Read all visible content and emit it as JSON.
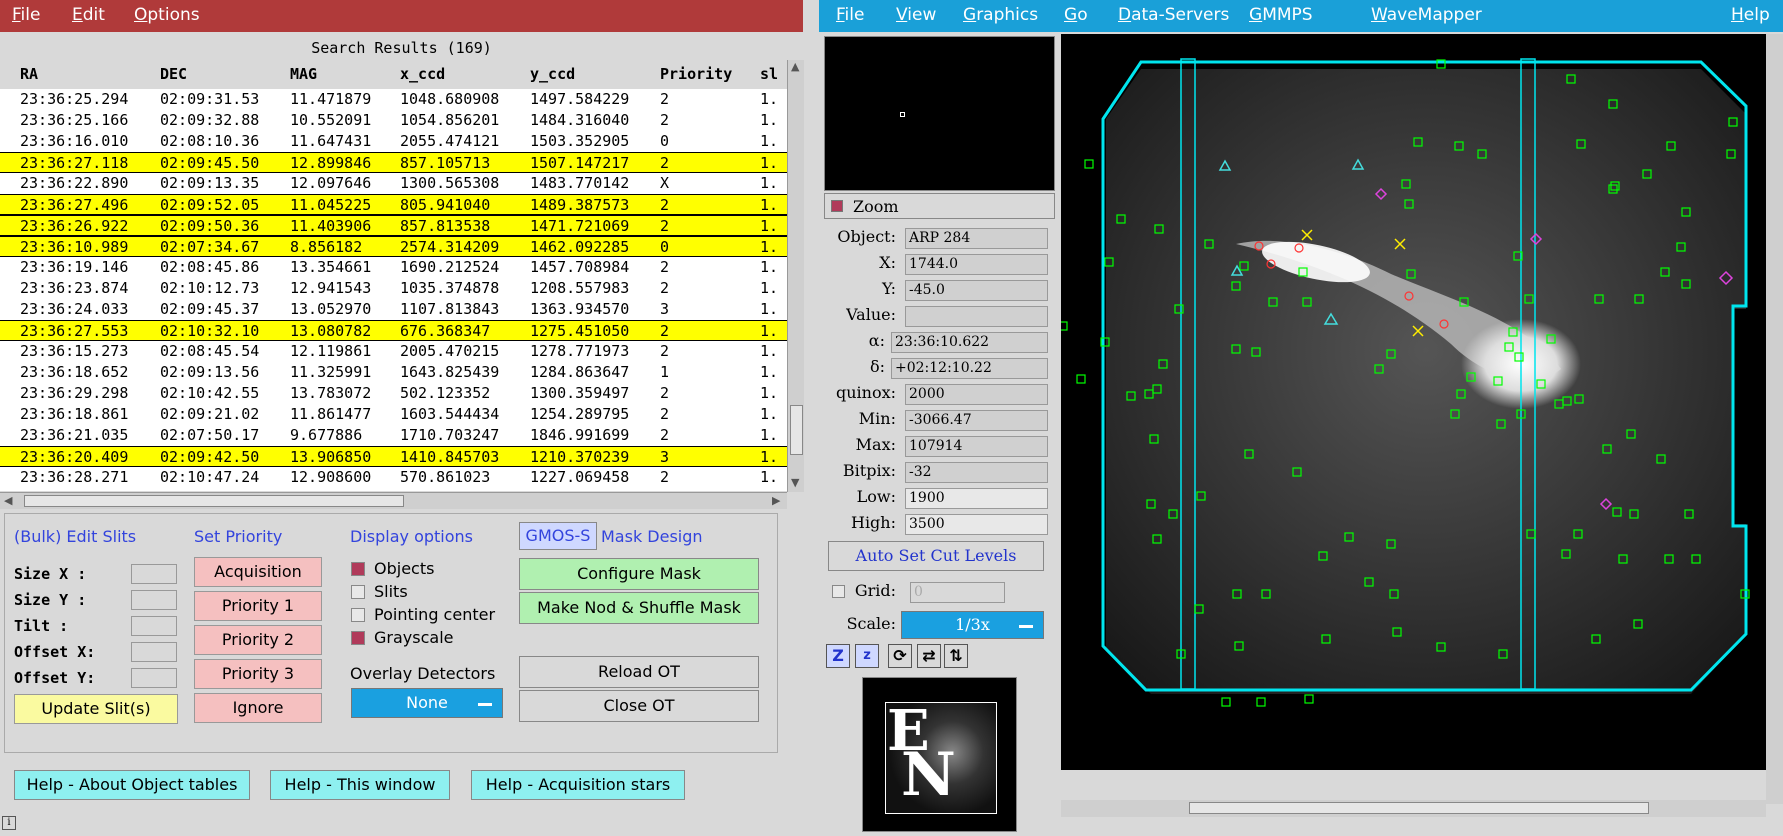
{
  "left_menu": {
    "file": "File",
    "edit": "Edit",
    "options": "Options"
  },
  "table": {
    "title": "Search Results (169)",
    "columns": [
      "RA",
      "DEC",
      "MAG",
      "x_ccd",
      "y_ccd",
      "Priority",
      "sl"
    ],
    "rows": [
      {
        "ra": "23:36:25.294",
        "dec": "02:09:31.53",
        "mag": "11.471879",
        "x": "1048.680908",
        "y": "1497.584229",
        "pri": "2",
        "sl": "1.",
        "sel": false
      },
      {
        "ra": "23:36:25.166",
        "dec": "02:09:32.88",
        "mag": "10.552091",
        "x": "1054.856201",
        "y": "1484.316040",
        "pri": "2",
        "sl": "1.",
        "sel": false
      },
      {
        "ra": "23:36:16.010",
        "dec": "02:08:10.36",
        "mag": "11.647431",
        "x": "2055.474121",
        "y": "1503.352905",
        "pri": "0",
        "sl": "1.",
        "sel": false
      },
      {
        "ra": "23:36:27.118",
        "dec": "02:09:45.50",
        "mag": "12.899846",
        "x": "857.105713",
        "y": "1507.147217",
        "pri": "2",
        "sl": "1.",
        "sel": true
      },
      {
        "ra": "23:36:22.890",
        "dec": "02:09:13.35",
        "mag": "12.097646",
        "x": "1300.565308",
        "y": "1483.770142",
        "pri": "X",
        "sl": "1.",
        "sel": false
      },
      {
        "ra": "23:36:27.496",
        "dec": "02:09:52.05",
        "mag": "11.045225",
        "x": "805.941040",
        "y": "1489.387573",
        "pri": "2",
        "sl": "1.",
        "sel": true
      },
      {
        "ra": "23:36:26.922",
        "dec": "02:09:50.36",
        "mag": "11.403906",
        "x": "857.813538",
        "y": "1471.721069",
        "pri": "2",
        "sl": "1.",
        "sel": true
      },
      {
        "ra": "23:36:10.989",
        "dec": "02:07:34.67",
        "mag": "8.856182",
        "x": "2574.314209",
        "y": "1462.092285",
        "pri": "0",
        "sl": "1.",
        "sel": true
      },
      {
        "ra": "23:36:19.146",
        "dec": "02:08:45.86",
        "mag": "13.354661",
        "x": "1690.212524",
        "y": "1457.708984",
        "pri": "2",
        "sl": "1.",
        "sel": false
      },
      {
        "ra": "23:36:23.874",
        "dec": "02:10:12.73",
        "mag": "12.941543",
        "x": "1035.374878",
        "y": "1208.557983",
        "pri": "2",
        "sl": "1.",
        "sel": false
      },
      {
        "ra": "23:36:24.033",
        "dec": "02:09:45.37",
        "mag": "13.052970",
        "x": "1107.813843",
        "y": "1363.934570",
        "pri": "3",
        "sl": "1.",
        "sel": false
      },
      {
        "ra": "23:36:27.553",
        "dec": "02:10:32.10",
        "mag": "13.080782",
        "x": "676.368347",
        "y": "1275.451050",
        "pri": "2",
        "sl": "1.",
        "sel": true
      },
      {
        "ra": "23:36:15.273",
        "dec": "02:08:45.54",
        "mag": "12.119861",
        "x": "2005.470215",
        "y": "1278.771973",
        "pri": "2",
        "sl": "1.",
        "sel": false
      },
      {
        "ra": "23:36:18.652",
        "dec": "02:09:13.56",
        "mag": "11.325991",
        "x": "1643.825439",
        "y": "1284.863647",
        "pri": "1",
        "sl": "1.",
        "sel": false
      },
      {
        "ra": "23:36:29.298",
        "dec": "02:10:42.55",
        "mag": "13.783072",
        "x": "502.123352",
        "y": "1300.359497",
        "pri": "2",
        "sl": "1.",
        "sel": false
      },
      {
        "ra": "23:36:18.861",
        "dec": "02:09:21.02",
        "mag": "11.861477",
        "x": "1603.544434",
        "y": "1254.289795",
        "pri": "2",
        "sl": "1.",
        "sel": false
      },
      {
        "ra": "23:36:21.035",
        "dec": "02:07:50.17",
        "mag": "9.677886",
        "x": "1710.703247",
        "y": "1846.991699",
        "pri": "2",
        "sl": "1.",
        "sel": false
      },
      {
        "ra": "23:36:20.409",
        "dec": "02:09:42.50",
        "mag": "13.906850",
        "x": "1410.845703",
        "y": "1210.370239",
        "pri": "3",
        "sl": "1.",
        "sel": true
      },
      {
        "ra": "23:36:28.271",
        "dec": "02:10:47.24",
        "mag": "12.908600",
        "x": "570.861023",
        "y": "1227.069458",
        "pri": "2",
        "sl": "1.",
        "sel": false
      }
    ]
  },
  "edit_slits": {
    "title": "(Bulk) Edit Slits",
    "labels": [
      "Size X   :",
      "Size Y   :",
      "Tilt     :",
      "Offset X:",
      "Offset Y:"
    ],
    "update": "Update Slit(s)"
  },
  "priority": {
    "title": "Set Priority",
    "buttons": [
      "Acquisition",
      "Priority 1",
      "Priority 2",
      "Priority 3",
      "Ignore"
    ]
  },
  "display": {
    "title": "Display options",
    "options": [
      {
        "label": "Objects",
        "checked": true
      },
      {
        "label": "Slits",
        "checked": false
      },
      {
        "label": "Pointing center",
        "checked": false
      },
      {
        "label": "Grayscale",
        "checked": true
      }
    ],
    "overlay_label": "Overlay Detectors",
    "overlay_value": "None"
  },
  "mask": {
    "instrument": "GMOS-S",
    "title": "Mask Design",
    "configure": "Configure Mask",
    "nod_shuffle": "Make Nod & Shuffle Mask",
    "reload": "Reload OT",
    "close": "Close OT"
  },
  "help": [
    "Help - About Object tables",
    "Help - This window",
    "Help - Acquisition stars"
  ],
  "status_icon": "info-icon",
  "right_menu": [
    "File",
    "View",
    "Graphics",
    "Go",
    "Data-Servers",
    "GMMPS",
    "WaveMapper"
  ],
  "right_help": "Help",
  "zoom_label": "Zoom",
  "info": [
    {
      "label": "Object:",
      "value": "ARP 284"
    },
    {
      "label": "X:",
      "value": "1744.0"
    },
    {
      "label": "Y:",
      "value": "-45.0"
    },
    {
      "label": "Value:",
      "value": ""
    },
    {
      "label": "α:",
      "value": "23:36:10.622"
    },
    {
      "label": "δ:",
      "value": "+02:12:10.22"
    },
    {
      "label": "quinox:",
      "value": "2000"
    },
    {
      "label": "Min:",
      "value": "-3066.47"
    },
    {
      "label": "Max:",
      "value": "107914"
    },
    {
      "label": "Bitpix:",
      "value": "-32"
    },
    {
      "label": "Low:",
      "value": "1900"
    },
    {
      "label": "High:",
      "value": "3500"
    }
  ],
  "autocut": "Auto Set Cut Levels",
  "grid_label": "Grid:",
  "grid_value": "0",
  "scale_label": "Scale:",
  "scale_value": "1/3x",
  "compass": {
    "north": "N",
    "east": "E"
  },
  "colors": {
    "left_menu": "#b03a3a",
    "right_menu": "#1aa0d8",
    "highlight": "#ffff00",
    "field": "#00e5ee",
    "marker": "#00ff00"
  }
}
